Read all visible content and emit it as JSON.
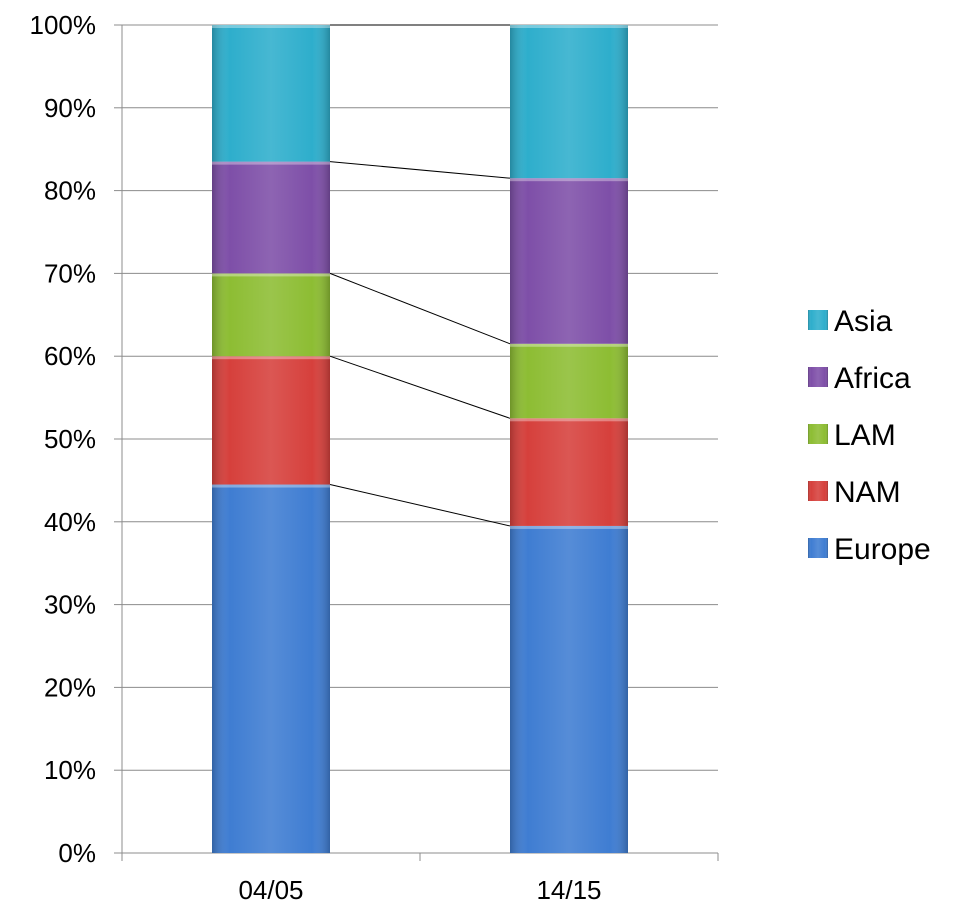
{
  "chart_data": {
    "type": "bar",
    "stacked": true,
    "percent_stacked": true,
    "categories": [
      "04/05",
      "14/15"
    ],
    "series": [
      {
        "name": "Europe",
        "color": "#3F7DD2",
        "values": [
          44.5,
          39.5
        ]
      },
      {
        "name": "NAM",
        "color": "#D6403C",
        "values": [
          15.5,
          13
        ]
      },
      {
        "name": "LAM",
        "color": "#8DBD33",
        "values": [
          10,
          9
        ]
      },
      {
        "name": "Africa",
        "color": "#7E4FA8",
        "values": [
          13.5,
          20
        ]
      },
      {
        "name": "Asia",
        "color": "#2EAECC",
        "values": [
          16.5,
          18.5
        ]
      }
    ],
    "yticks": [
      "0%",
      "10%",
      "20%",
      "30%",
      "40%",
      "50%",
      "60%",
      "70%",
      "80%",
      "90%",
      "100%"
    ],
    "ylim": [
      0,
      100
    ],
    "grid": true,
    "legend": "right",
    "series_lines": true
  }
}
